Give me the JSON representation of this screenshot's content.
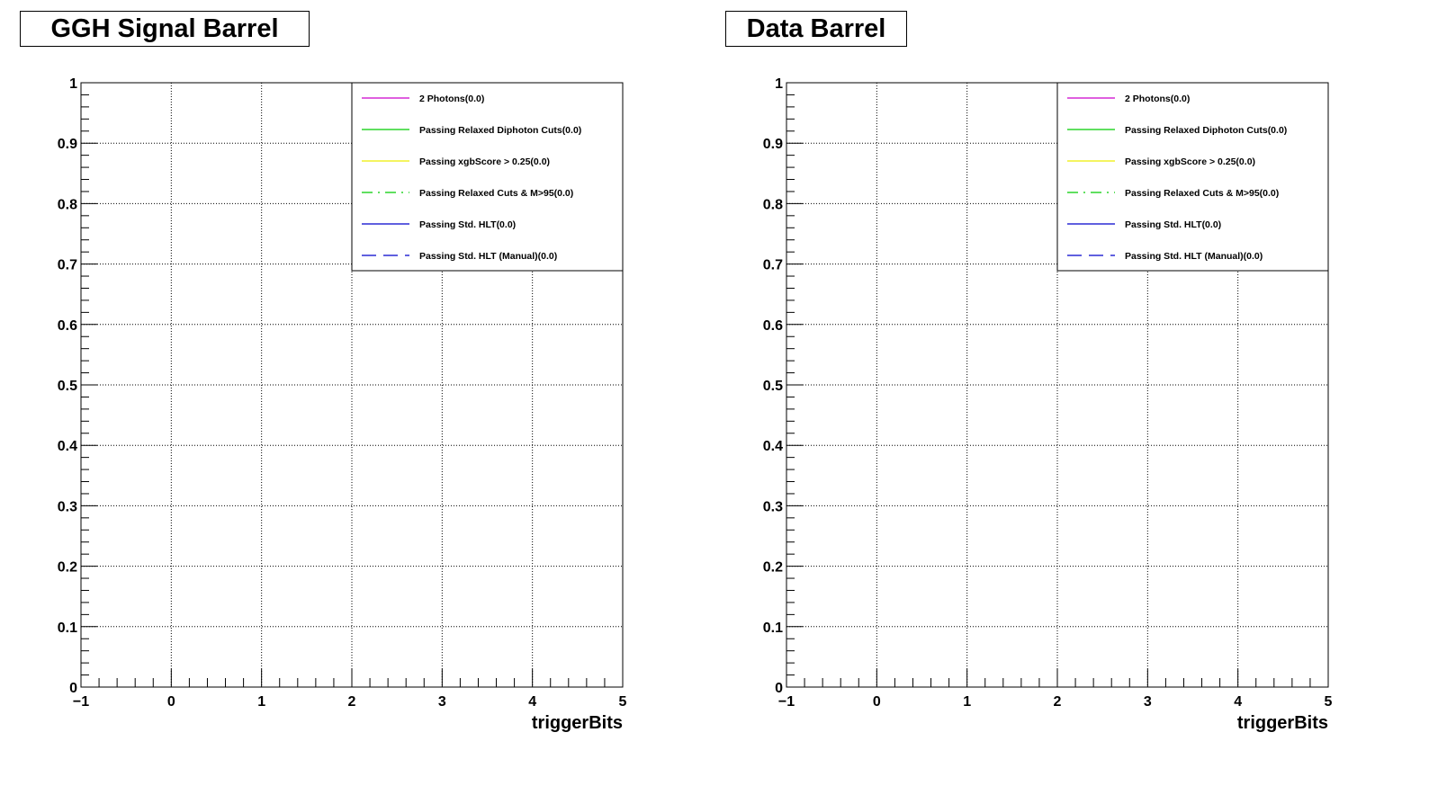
{
  "chart_data": [
    {
      "type": "line",
      "title": "GGH Signal Barrel",
      "xlabel": "triggerBits",
      "ylabel": "",
      "xlim": [
        -1,
        5
      ],
      "ylim": [
        0,
        1
      ],
      "x_ticks": [
        "−1",
        "0",
        "1",
        "2",
        "3",
        "4",
        "5"
      ],
      "y_ticks": [
        "0",
        "0.1",
        "0.2",
        "0.3",
        "0.4",
        "0.5",
        "0.6",
        "0.7",
        "0.8",
        "0.9",
        "1"
      ],
      "grid": true,
      "legend_position": "top-right",
      "series": [
        {
          "name": "2 Photons(0.0)",
          "color": "#cc00cc",
          "dash": "solid",
          "values": []
        },
        {
          "name": "Passing Relaxed Diphoton Cuts(0.0)",
          "color": "#00cc00",
          "dash": "solid",
          "values": []
        },
        {
          "name": "Passing xgbScore > 0.25(0.0)",
          "color": "#eeee00",
          "dash": "solid",
          "values": []
        },
        {
          "name": "Passing Relaxed Cuts & M>95(0.0)",
          "color": "#00cc00",
          "dash": "dashdot",
          "values": []
        },
        {
          "name": "Passing Std. HLT(0.0)",
          "color": "#0000cc",
          "dash": "solid",
          "values": []
        },
        {
          "name": "Passing Std. HLT (Manual)(0.0)",
          "color": "#0000cc",
          "dash": "dashed",
          "values": []
        }
      ]
    },
    {
      "type": "line",
      "title": "Data Barrel",
      "xlabel": "triggerBits",
      "ylabel": "",
      "xlim": [
        -1,
        5
      ],
      "ylim": [
        0,
        1
      ],
      "x_ticks": [
        "−1",
        "0",
        "1",
        "2",
        "3",
        "4",
        "5"
      ],
      "y_ticks": [
        "0",
        "0.1",
        "0.2",
        "0.3",
        "0.4",
        "0.5",
        "0.6",
        "0.7",
        "0.8",
        "0.9",
        "1"
      ],
      "grid": true,
      "legend_position": "top-right",
      "series": [
        {
          "name": "2 Photons(0.0)",
          "color": "#cc00cc",
          "dash": "solid",
          "values": []
        },
        {
          "name": "Passing Relaxed Diphoton Cuts(0.0)",
          "color": "#00cc00",
          "dash": "solid",
          "values": []
        },
        {
          "name": "Passing xgbScore > 0.25(0.0)",
          "color": "#eeee00",
          "dash": "solid",
          "values": []
        },
        {
          "name": "Passing Relaxed Cuts & M>95(0.0)",
          "color": "#00cc00",
          "dash": "dashdot",
          "values": []
        },
        {
          "name": "Passing Std. HLT(0.0)",
          "color": "#0000cc",
          "dash": "solid",
          "values": []
        },
        {
          "name": "Passing Std. HLT (Manual)(0.0)",
          "color": "#0000cc",
          "dash": "dashed",
          "values": []
        }
      ]
    }
  ]
}
